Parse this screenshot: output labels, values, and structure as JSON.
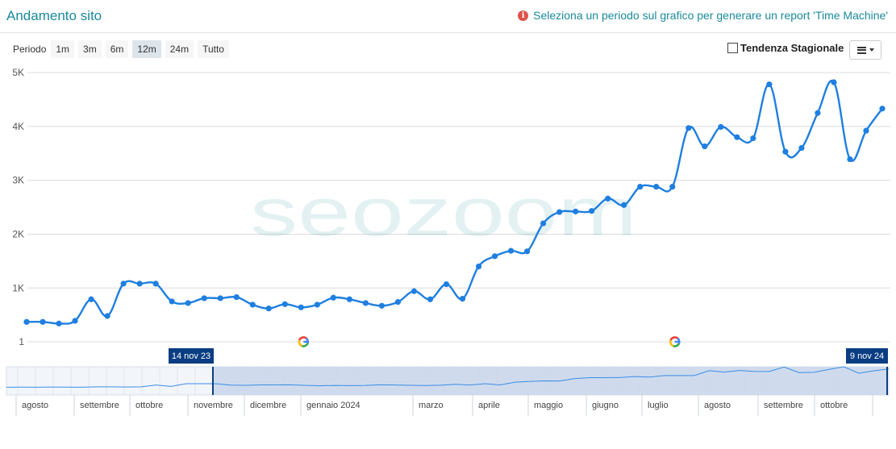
{
  "header": {
    "title": "Andamento sito",
    "notice": "Seleziona un periodo sul grafico per generare un report 'Time Machine'",
    "notice_icon": "info-icon"
  },
  "toolbar": {
    "period_label": "Periodo",
    "periods": [
      "1m",
      "3m",
      "6m",
      "12m",
      "24m",
      "Tutto"
    ],
    "selected_period": "12m",
    "seasonal_label": "Tendenza Stagionale",
    "seasonal_checked": false,
    "menu_icon": "hamburger-menu-icon"
  },
  "watermark": "seozoom",
  "colors": {
    "line": "#1f7fe0",
    "accent": "#1a8a9c",
    "navigator_fill": "#c9d6ea",
    "flag": "#0a3d82"
  },
  "chart_data": {
    "type": "line",
    "series": [
      {
        "values": [
          370,
          370,
          340,
          390,
          790,
          480,
          1080,
          1080,
          1080,
          750,
          720,
          810,
          810,
          830,
          690,
          620,
          700,
          640,
          690,
          820,
          790,
          720,
          670,
          740,
          940,
          790,
          1070,
          800,
          1400,
          1590,
          1690,
          1680,
          2200,
          2410,
          2420,
          2430,
          2660,
          2540,
          2880,
          2880,
          2880,
          3970,
          3630,
          3990,
          3800,
          3780,
          4780,
          3530,
          3600,
          4250,
          4820,
          3390,
          3920,
          4330
        ]
      }
    ],
    "y_ticks": [
      "1",
      "1K",
      "2K",
      "3K",
      "4K",
      "5K"
    ],
    "y_tick_values": [
      1,
      1000,
      2000,
      3000,
      4000,
      5000
    ],
    "ylim": [
      1,
      5000
    ],
    "grid": true,
    "google_update_markers": [
      17,
      40
    ],
    "navigator": {
      "months": [
        "agosto",
        "settembre",
        "ottobre",
        "novembre",
        "dicembre",
        "gennaio 2024",
        "marzo",
        "aprile",
        "maggio",
        "giugno",
        "luglio",
        "agosto",
        "settembre",
        "ottobre"
      ],
      "range_start": "14 nov 23",
      "range_end": "9 nov 24"
    }
  }
}
